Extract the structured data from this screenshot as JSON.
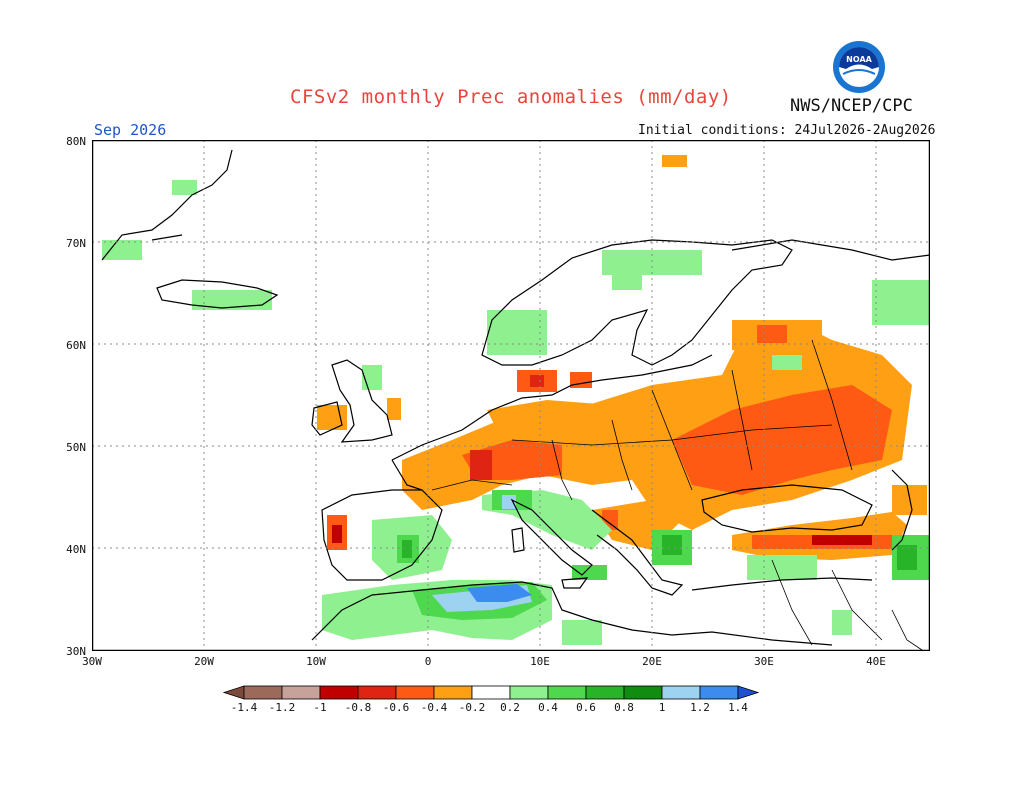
{
  "header": {
    "title": "CFSv2 monthly Prec anomalies (mm/day)",
    "organization": "NWS/NCEP/CPC",
    "logo_text": "NOAA",
    "valid_month": "Sep 2026",
    "initial_conditions": "Initial conditions: 24Jul2026-2Aug2026"
  },
  "axes": {
    "lat_labels": [
      "80N",
      "70N",
      "60N",
      "50N",
      "40N",
      "30N"
    ],
    "lon_labels": [
      "30W",
      "20W",
      "10W",
      "0",
      "10E",
      "20E",
      "30E",
      "40E"
    ]
  },
  "legend": {
    "labels": [
      "-1.4",
      "-1.2",
      "-1",
      "-0.8",
      "-0.6",
      "-0.4",
      "-0.2",
      "0.2",
      "0.4",
      "0.6",
      "0.8",
      "1",
      "1.2",
      "1.4"
    ],
    "colors": [
      "#7b4a3a",
      "#9c6a5a",
      "#c7a29a",
      "#c00000",
      "#e02414",
      "#ff5a14",
      "#ff9f14",
      "#ffffff",
      "#8ef08e",
      "#4ed84e",
      "#28b428",
      "#108c10",
      "#9dd2f0",
      "#3c8cf0",
      "#1e50d2"
    ]
  },
  "colors": {
    "brown": "#9c6a5a",
    "darkred": "#c00000",
    "red": "#ff4a14",
    "orange": "#ff9f14",
    "lightgreen": "#8ef08e",
    "green": "#4ed84e",
    "darkgreen": "#28b428",
    "lightblue": "#9dd2f0",
    "blue": "#3c8cf0"
  }
}
